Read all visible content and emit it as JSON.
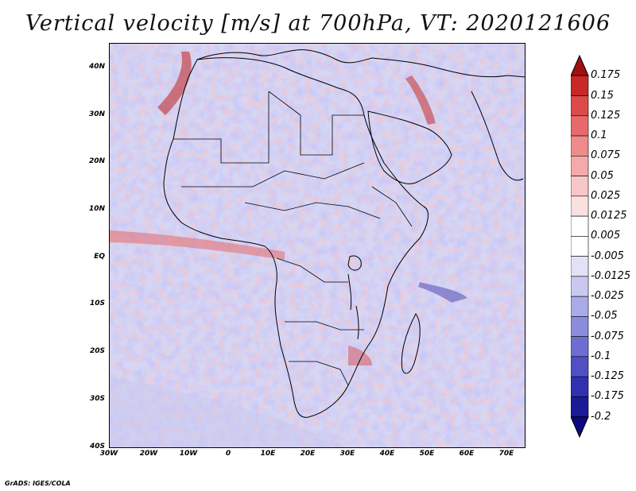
{
  "title": "Vertical velocity [m/s] at 700hPa, VT: 2020121606",
  "map": {
    "region": "Africa",
    "latitude_labels": [
      "40N",
      "30N",
      "20N",
      "10N",
      "EQ",
      "10S",
      "20S",
      "30S",
      "40S"
    ],
    "longitude_labels": [
      "30W",
      "20W",
      "10W",
      "0",
      "10E",
      "20E",
      "30E",
      "40E",
      "50E",
      "60E",
      "70E"
    ],
    "lat_range": [
      -40,
      45
    ],
    "lon_range": [
      -30,
      75
    ]
  },
  "colorbar": {
    "levels": [
      "0.175",
      "0.15",
      "0.125",
      "0.1",
      "0.075",
      "0.05",
      "0.025",
      "0.0125",
      "0.005",
      "-0.005",
      "-0.0125",
      "-0.025",
      "-0.05",
      "-0.075",
      "-0.1",
      "-0.125",
      "-0.175",
      "-0.2"
    ],
    "colors": [
      "#a01010",
      "#c82828",
      "#dc4a4a",
      "#e66a6a",
      "#ee8c8c",
      "#f4aaaa",
      "#f8c6c6",
      "#fbe0e0",
      "#ffffff",
      "#ffffff",
      "#e2e2f6",
      "#c8c8f0",
      "#aaaae8",
      "#8c8cde",
      "#6e6ed2",
      "#5050c4",
      "#3030b0",
      "#1a1a98",
      "#0a0a80"
    ]
  },
  "credit": "GrADS: IGES/COLA"
}
